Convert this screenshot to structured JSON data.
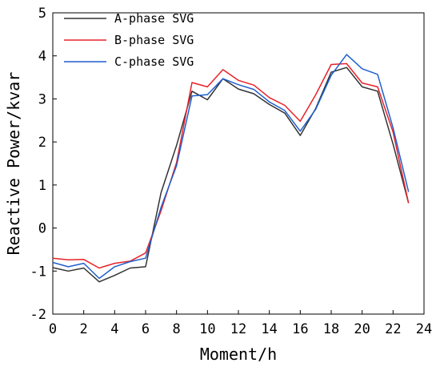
{
  "chart_data": {
    "type": "line",
    "title": "",
    "xlabel": "Moment/h",
    "ylabel": "Reactive Power/kvar",
    "xlim": [
      0,
      24
    ],
    "ylim": [
      -2,
      5
    ],
    "xticks": [
      0,
      2,
      4,
      6,
      8,
      10,
      12,
      14,
      16,
      18,
      20,
      22,
      24
    ],
    "yticks": [
      -2,
      -1,
      0,
      1,
      2,
      3,
      4,
      5
    ],
    "grid": false,
    "legend_position": "top-left",
    "x": [
      0,
      1,
      2,
      3,
      4,
      5,
      6,
      7,
      8,
      9,
      10,
      11,
      12,
      13,
      14,
      15,
      16,
      17,
      18,
      19,
      20,
      21,
      22,
      23
    ],
    "series": [
      {
        "name": "A-phase SVG",
        "color": "#333333",
        "values": [
          -0.92,
          -1.0,
          -0.93,
          -1.25,
          -1.1,
          -0.93,
          -0.9,
          0.82,
          1.92,
          3.18,
          2.98,
          3.47,
          3.23,
          3.12,
          2.87,
          2.67,
          2.15,
          2.78,
          3.62,
          3.73,
          3.28,
          3.18,
          1.95,
          0.58
        ]
      },
      {
        "name": "B-phase SVG",
        "color": "#e8222a",
        "values": [
          -0.7,
          -0.74,
          -0.73,
          -0.93,
          -0.82,
          -0.77,
          -0.58,
          0.4,
          1.52,
          3.38,
          3.28,
          3.68,
          3.43,
          3.32,
          3.03,
          2.85,
          2.48,
          3.1,
          3.8,
          3.82,
          3.37,
          3.28,
          2.23,
          0.58
        ]
      },
      {
        "name": "C-phase SVG",
        "color": "#1f5fcf",
        "values": [
          -0.8,
          -0.9,
          -0.82,
          -1.17,
          -0.9,
          -0.78,
          -0.7,
          0.48,
          1.45,
          3.07,
          3.1,
          3.47,
          3.33,
          3.22,
          2.93,
          2.73,
          2.25,
          2.76,
          3.55,
          4.03,
          3.7,
          3.57,
          2.33,
          0.84
        ]
      }
    ]
  }
}
